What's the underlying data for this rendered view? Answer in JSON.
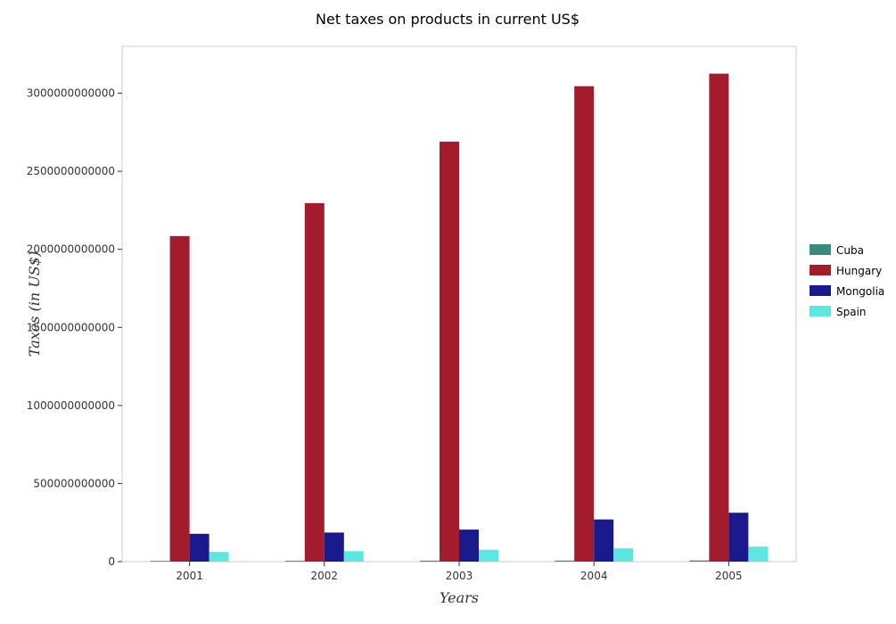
{
  "chart_data": {
    "type": "bar",
    "title": "Net taxes on products in current US$",
    "xlabel": "Years",
    "ylabel": "Taxes (in US$)",
    "categories": [
      "2001",
      "2002",
      "2003",
      "2004",
      "2005"
    ],
    "ylim": [
      0,
      3300000000000
    ],
    "yticks": [
      0,
      500000000000,
      1000000000000,
      1500000000000,
      2000000000000,
      2500000000000,
      3000000000000
    ],
    "ytick_labels": [
      "0",
      "500000000000",
      "1000000000000",
      "1500000000000",
      "2000000000000",
      "2500000000000",
      "3000000000000"
    ],
    "legend_position": "right",
    "grid": false,
    "series": [
      {
        "name": "Cuba",
        "color": "#3a8b7c",
        "values": [
          4500000000,
          5200000000,
          6000000000,
          6700000000,
          7500000000
        ]
      },
      {
        "name": "Hungary",
        "color": "#a31c2e",
        "values": [
          2085000000000,
          2296000000000,
          2690000000000,
          3045000000000,
          3125000000000
        ]
      },
      {
        "name": "Mongolia",
        "color": "#1a1a8c",
        "values": [
          178000000000,
          186000000000,
          205000000000,
          270000000000,
          313000000000
        ]
      },
      {
        "name": "Spain",
        "color": "#5ee6e0",
        "values": [
          62000000000,
          67000000000,
          76000000000,
          85000000000,
          96000000000
        ]
      }
    ]
  }
}
